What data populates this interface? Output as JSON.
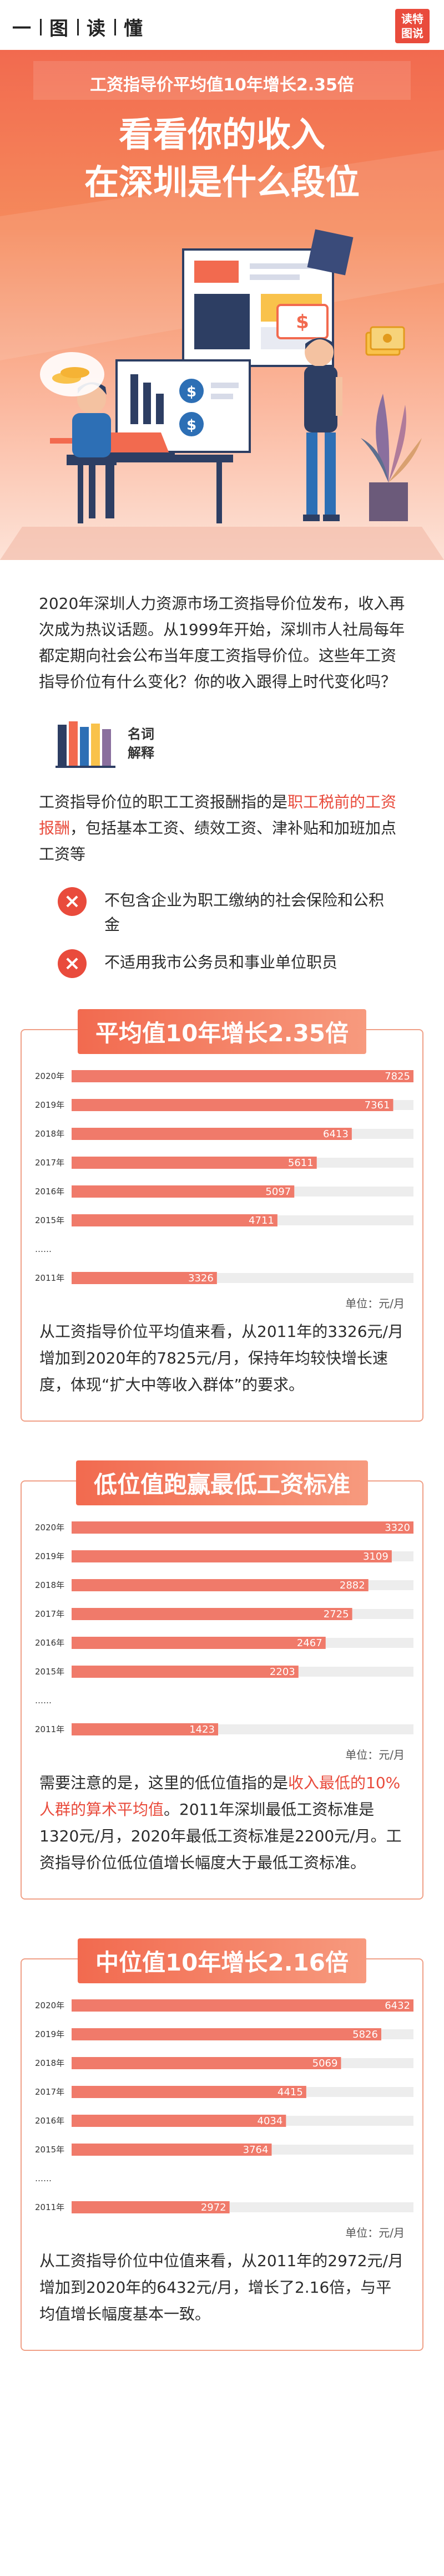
{
  "header": {
    "brand": [
      "一",
      "图",
      "读",
      "懂"
    ],
    "logo_lines": [
      "读特",
      "图说"
    ]
  },
  "hero": {
    "subtitle": "工资指导价平均值10年增长2.35倍",
    "title_line1": "看看你的收入",
    "title_line2": "在深圳是什么段位"
  },
  "intro": {
    "paragraph": "2020年深圳人力资源市场工资指导价位发布，收入再次成为热议话题。从1999年开始，深圳市人社局每年都定期向社会公布当年度工资指导价位。这些年工资指导价位有什么变化？你的收入跟得上时代变化吗？"
  },
  "term": {
    "label_line1": "名词",
    "label_line2": "解释",
    "text_before": "工资指导价位的职工工资报酬指的是",
    "text_highlight": "职工税前的工资报酬",
    "text_after": "，包括基本工资、绩效工资、津补贴和加班加点工资等",
    "exclusions": [
      "不包含企业为职工缴纳的社会保险和公积金",
      "不适用我市公务员和事业单位职员"
    ]
  },
  "charts": [
    {
      "title": "平均值10年增长2.35倍",
      "unit": "单位：元/月",
      "text": "从工资指导价位平均值来看，从2011年的3326元/月增加到2020年的7825元/月，保持年均较快增长速度，体现“扩大中等收入群体”的要求。"
    },
    {
      "title": "低位值跑赢最低工资标准",
      "unit": "单位：元/月",
      "text_before": "需要注意的是，这里的低位值指的是",
      "text_highlight": "收入最低的10%人群的算术平均值",
      "text_after": "。2011年深圳最低工资标准是1320元/月，2020年最低工资标准是2200元/月。工资指导价位低位值增长幅度大于最低工资标准。"
    },
    {
      "title": "中位值10年增长2.16倍",
      "unit": "单位：元/月",
      "text": "从工资指导价位中位值来看，从2011年的2972元/月增加到2020年的6432元/月，增长了2.16倍，与平均值增长幅度基本一致。"
    }
  ],
  "chart_data": [
    {
      "type": "bar",
      "orientation": "horizontal",
      "title": "平均值10年增长2.35倍",
      "categories": [
        "2020年",
        "2019年",
        "2018年",
        "2017年",
        "2016年",
        "2015年",
        "……",
        "2011年"
      ],
      "values": [
        7825,
        7361,
        6413,
        5611,
        5097,
        4711,
        null,
        3326
      ],
      "unit": "单位：元/月",
      "colors": {
        "bar": "#f07a6a",
        "gap": "#cccccc"
      }
    },
    {
      "type": "bar",
      "orientation": "horizontal",
      "title": "低位值跑赢最低工资标准",
      "categories": [
        "2020年",
        "2019年",
        "2018年",
        "2017年",
        "2016年",
        "2015年",
        "……",
        "2011年"
      ],
      "values": [
        3320,
        3109,
        2882,
        2725,
        2467,
        2203,
        null,
        1423
      ],
      "unit": "单位：元/月",
      "colors": {
        "bar": "#f07a6a",
        "gap": "#cccccc"
      }
    },
    {
      "type": "bar",
      "orientation": "horizontal",
      "title": "中位值10年增长2.16倍",
      "categories": [
        "2020年",
        "2019年",
        "2018年",
        "2017年",
        "2016年",
        "2015年",
        "……",
        "2011年"
      ],
      "values": [
        6432,
        5826,
        5069,
        4415,
        4034,
        3764,
        null,
        2972
      ],
      "unit": "单位：元/月",
      "colors": {
        "bar": "#f07a6a",
        "gap": "#cccccc"
      }
    }
  ],
  "colors": {
    "accent": "#e94b3c",
    "hero_top": "#f26a4f",
    "card_border": "#f0a087"
  }
}
